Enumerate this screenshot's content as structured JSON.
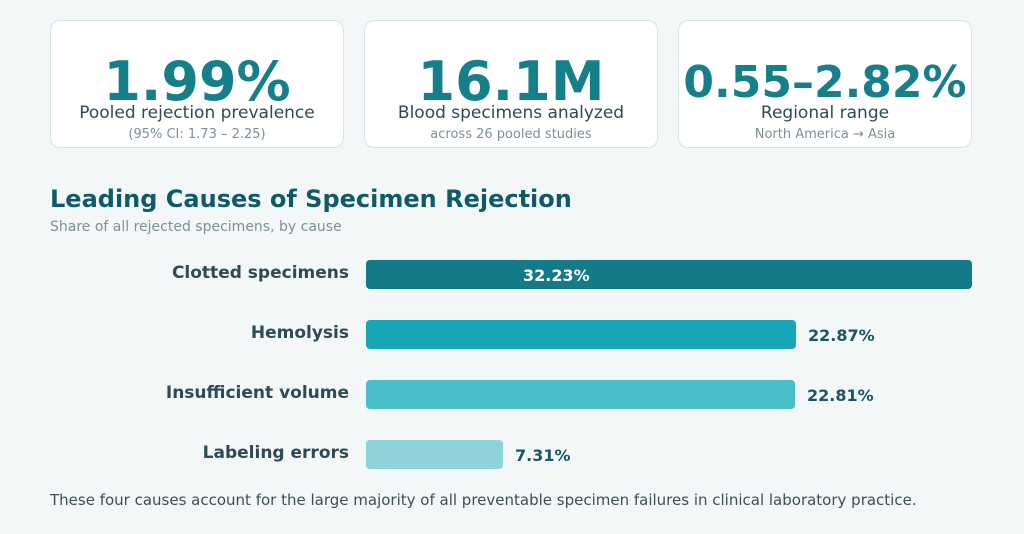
{
  "stats": [
    {
      "value": "1.99%",
      "label": "Pooled rejection prevalence",
      "sub": "(95% CI: 1.73 – 2.25)"
    },
    {
      "value": "16.1M",
      "label": "Blood specimens analyzed",
      "sub": "across 26 pooled studies"
    },
    {
      "value": "0.55–2.82%",
      "label": "Regional range",
      "sub": "North America → Asia"
    }
  ],
  "chart_data": {
    "type": "bar",
    "orientation": "horizontal",
    "title": "Leading Causes of Specimen Rejection",
    "subtitle": "Share of all rejected specimens, by cause",
    "categories": [
      "Clotted specimens",
      "Hemolysis",
      "Insufficient volume",
      "Labeling errors"
    ],
    "values": [
      32.23,
      22.87,
      22.81,
      7.31
    ],
    "value_labels": [
      "32.23%",
      "22.87%",
      "22.81%",
      "7.31%"
    ],
    "colors": [
      "#137a87",
      "#17a6b5",
      "#48bfc9",
      "#8ed3da"
    ],
    "xlim": [
      0,
      32.23
    ],
    "grid": false
  },
  "footnote": "These four causes account for the large majority of all preventable specimen failures in clinical laboratory practice."
}
